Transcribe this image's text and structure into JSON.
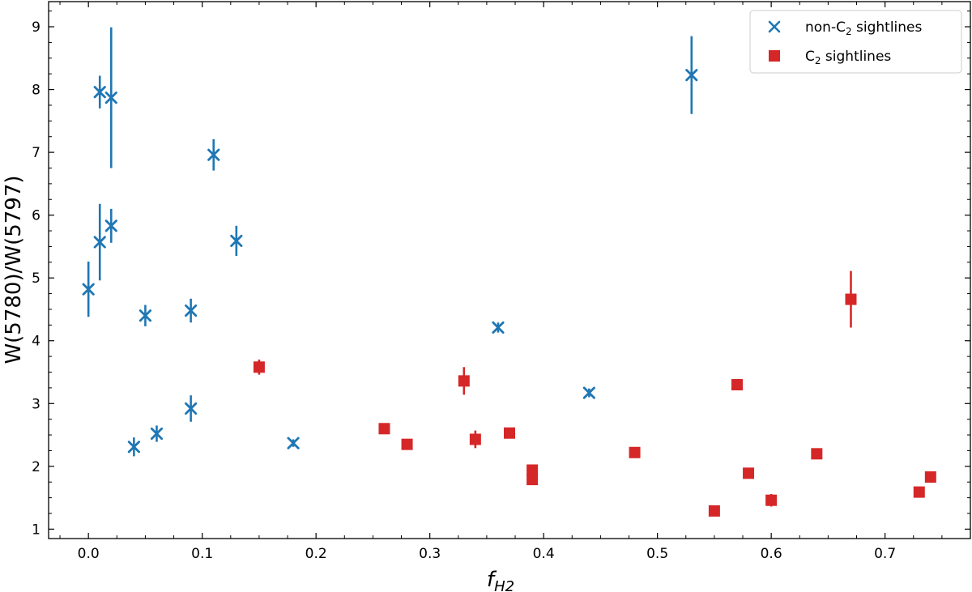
{
  "chart_data": {
    "type": "scatter",
    "title": "",
    "xlabel": "f",
    "xlabel_sub": "H2",
    "ylabel": "W(5780)/W(5797)",
    "xlim": [
      -0.035,
      0.775
    ],
    "ylim": [
      0.85,
      9.4
    ],
    "xticks": [
      0.0,
      0.1,
      0.2,
      0.3,
      0.4,
      0.5,
      0.6,
      0.7
    ],
    "xtick_labels": [
      "0.0",
      "0.1",
      "0.2",
      "0.3",
      "0.4",
      "0.5",
      "0.6",
      "0.7"
    ],
    "yticks": [
      1,
      2,
      3,
      4,
      5,
      6,
      7,
      8,
      9
    ],
    "ytick_labels": [
      "1",
      "2",
      "3",
      "4",
      "5",
      "6",
      "7",
      "8",
      "9"
    ],
    "legend_position": "top-right",
    "series": [
      {
        "name": "non-C2 sightlines",
        "label_main": "non-C",
        "label_sub": "2",
        "label_rest": " sightlines",
        "marker": "x",
        "color": "#1f77b4",
        "points": [
          {
            "x": 0.0,
            "y": 4.82,
            "err": 0.44
          },
          {
            "x": 0.01,
            "y": 7.96,
            "err": 0.26
          },
          {
            "x": 0.01,
            "y": 5.57,
            "err": 0.61
          },
          {
            "x": 0.02,
            "y": 7.87,
            "err": 1.12
          },
          {
            "x": 0.02,
            "y": 5.83,
            "err": 0.27
          },
          {
            "x": 0.04,
            "y": 2.31,
            "err": 0.15
          },
          {
            "x": 0.05,
            "y": 4.4,
            "err": 0.17
          },
          {
            "x": 0.06,
            "y": 2.52,
            "err": 0.13
          },
          {
            "x": 0.09,
            "y": 4.48,
            "err": 0.19
          },
          {
            "x": 0.09,
            "y": 2.92,
            "err": 0.21
          },
          {
            "x": 0.11,
            "y": 6.96,
            "err": 0.25
          },
          {
            "x": 0.13,
            "y": 5.59,
            "err": 0.24
          },
          {
            "x": 0.18,
            "y": 2.37,
            "err": 0.06
          },
          {
            "x": 0.36,
            "y": 4.21,
            "err": 0.08
          },
          {
            "x": 0.44,
            "y": 3.17,
            "err": 0.07
          },
          {
            "x": 0.53,
            "y": 8.23,
            "err": 0.62
          }
        ]
      },
      {
        "name": "C2 sightlines",
        "label_main": "C",
        "label_sub": "2",
        "label_rest": " sightlines",
        "marker": "s",
        "color": "#d62728",
        "points": [
          {
            "x": 0.15,
            "y": 3.58,
            "err": 0.12
          },
          {
            "x": 0.26,
            "y": 2.6,
            "err": 0.05
          },
          {
            "x": 0.28,
            "y": 2.35,
            "err": 0.05
          },
          {
            "x": 0.33,
            "y": 3.36,
            "err": 0.22
          },
          {
            "x": 0.34,
            "y": 2.43,
            "err": 0.14
          },
          {
            "x": 0.37,
            "y": 2.53,
            "err": 0.05
          },
          {
            "x": 0.39,
            "y": 1.94,
            "err": 0.05
          },
          {
            "x": 0.39,
            "y": 1.79,
            "err": 0.05
          },
          {
            "x": 0.48,
            "y": 2.22,
            "err": 0.05
          },
          {
            "x": 0.55,
            "y": 1.29,
            "err": 0.05
          },
          {
            "x": 0.57,
            "y": 3.3,
            "err": 0.05
          },
          {
            "x": 0.58,
            "y": 1.89,
            "err": 0.05
          },
          {
            "x": 0.6,
            "y": 1.46,
            "err": 0.1
          },
          {
            "x": 0.64,
            "y": 2.2,
            "err": 0.08
          },
          {
            "x": 0.67,
            "y": 4.66,
            "err": 0.45
          },
          {
            "x": 0.73,
            "y": 1.59,
            "err": 0.05
          },
          {
            "x": 0.74,
            "y": 1.83,
            "err": 0.05
          }
        ]
      }
    ]
  }
}
